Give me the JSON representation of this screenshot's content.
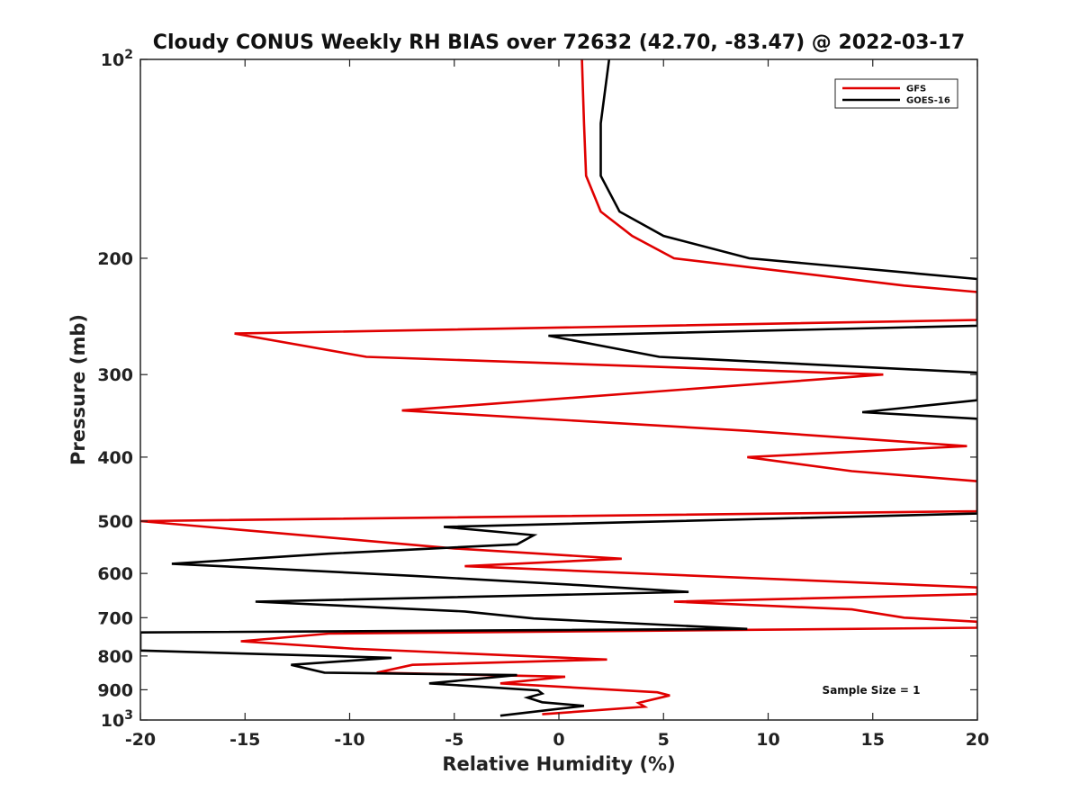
{
  "chart_data": {
    "type": "line",
    "title": "Cloudy CONUS Weekly RH BIAS over 72632 (42.70, -83.47) @ 2022-03-17",
    "xlabel": "Relative Humidity (%)",
    "ylabel": "Pressure (mb)",
    "xlim": [
      -20,
      20
    ],
    "ylim": [
      100,
      1000
    ],
    "y_scale": "log",
    "y_reversed": true,
    "xticks": [
      -20,
      -15,
      -10,
      -5,
      0,
      5,
      10,
      15,
      20
    ],
    "xtick_labels": [
      "-20",
      "-15",
      "-10",
      "-5",
      "0",
      "5",
      "10",
      "15",
      "20"
    ],
    "yticks": [
      100,
      200,
      300,
      400,
      500,
      600,
      700,
      800,
      900,
      1000
    ],
    "ytick_labels": [
      {
        "base": "10",
        "exp": "2"
      },
      {
        "base": "200"
      },
      {
        "base": "300"
      },
      {
        "base": "400"
      },
      {
        "base": "500"
      },
      {
        "base": "600"
      },
      {
        "base": "700"
      },
      {
        "base": "800"
      },
      {
        "base": "900"
      },
      {
        "base": "10",
        "exp": "3"
      }
    ],
    "grid": false,
    "legend_position": "top-right",
    "annotation": "Sample Size = 1",
    "series": [
      {
        "name": "GFS",
        "color": "#e00000",
        "points": [
          [
            1.1,
            100
          ],
          [
            1.2,
            125
          ],
          [
            1.3,
            150
          ],
          [
            2.0,
            170
          ],
          [
            3.5,
            185
          ],
          [
            5.5,
            200
          ],
          [
            16.5,
            220
          ],
          [
            20,
            225
          ],
          [
            20,
            248
          ],
          [
            -15.5,
            260
          ],
          [
            -9.2,
            282
          ],
          [
            15.5,
            300
          ],
          [
            -7.5,
            340
          ],
          [
            9,
            365
          ],
          [
            19.5,
            385
          ],
          [
            9,
            400
          ],
          [
            14,
            420
          ],
          [
            20,
            435
          ],
          [
            20,
            483
          ],
          [
            -20,
            500
          ],
          [
            -5,
            550
          ],
          [
            3,
            570
          ],
          [
            -4.5,
            585
          ],
          [
            20,
            630
          ],
          [
            20,
            645
          ],
          [
            5.5,
            662
          ],
          [
            14,
            680
          ],
          [
            16.5,
            700
          ],
          [
            20,
            710
          ],
          [
            20,
            725
          ],
          [
            -11,
            740
          ],
          [
            -15.2,
            760
          ],
          [
            -9.8,
            780
          ],
          [
            2.3,
            810
          ],
          [
            -7,
            825
          ],
          [
            -8.7,
            848
          ],
          [
            0.3,
            860
          ],
          [
            -2.8,
            880
          ],
          [
            4.7,
            908
          ],
          [
            5.3,
            918
          ],
          [
            3.8,
            942
          ],
          [
            4.1,
            955
          ],
          [
            -0.8,
            980
          ]
        ]
      },
      {
        "name": "GOES-16",
        "color": "#000000",
        "points": [
          [
            2.4,
            100
          ],
          [
            2.0,
            125
          ],
          [
            2.0,
            150
          ],
          [
            2.9,
            170
          ],
          [
            5.0,
            185
          ],
          [
            9.1,
            200
          ],
          [
            20,
            215
          ],
          [
            20,
            253
          ],
          [
            -0.5,
            262
          ],
          [
            4.8,
            282
          ],
          [
            20,
            298
          ],
          [
            20,
            328
          ],
          [
            14.5,
            342
          ],
          [
            20,
            350
          ],
          [
            20,
            487
          ],
          [
            -5.5,
            510
          ],
          [
            -1.2,
            525
          ],
          [
            -2,
            542
          ],
          [
            -11,
            560
          ],
          [
            -18.5,
            580
          ],
          [
            -7,
            605
          ],
          [
            1,
            625
          ],
          [
            6.2,
            640
          ],
          [
            -14.5,
            662
          ],
          [
            -4.5,
            685
          ],
          [
            -1.2,
            702
          ],
          [
            9,
            728
          ],
          [
            -20,
            737
          ],
          [
            -20,
            785
          ],
          [
            -8,
            805
          ],
          [
            -12.8,
            825
          ],
          [
            -11.2,
            848
          ],
          [
            -2,
            855
          ],
          [
            -6.2,
            880
          ],
          [
            -1.0,
            902
          ],
          [
            -0.8,
            912
          ],
          [
            -1.5,
            925
          ],
          [
            -0.8,
            940
          ],
          [
            1.2,
            952
          ],
          [
            -2.8,
            985
          ]
        ]
      }
    ]
  }
}
